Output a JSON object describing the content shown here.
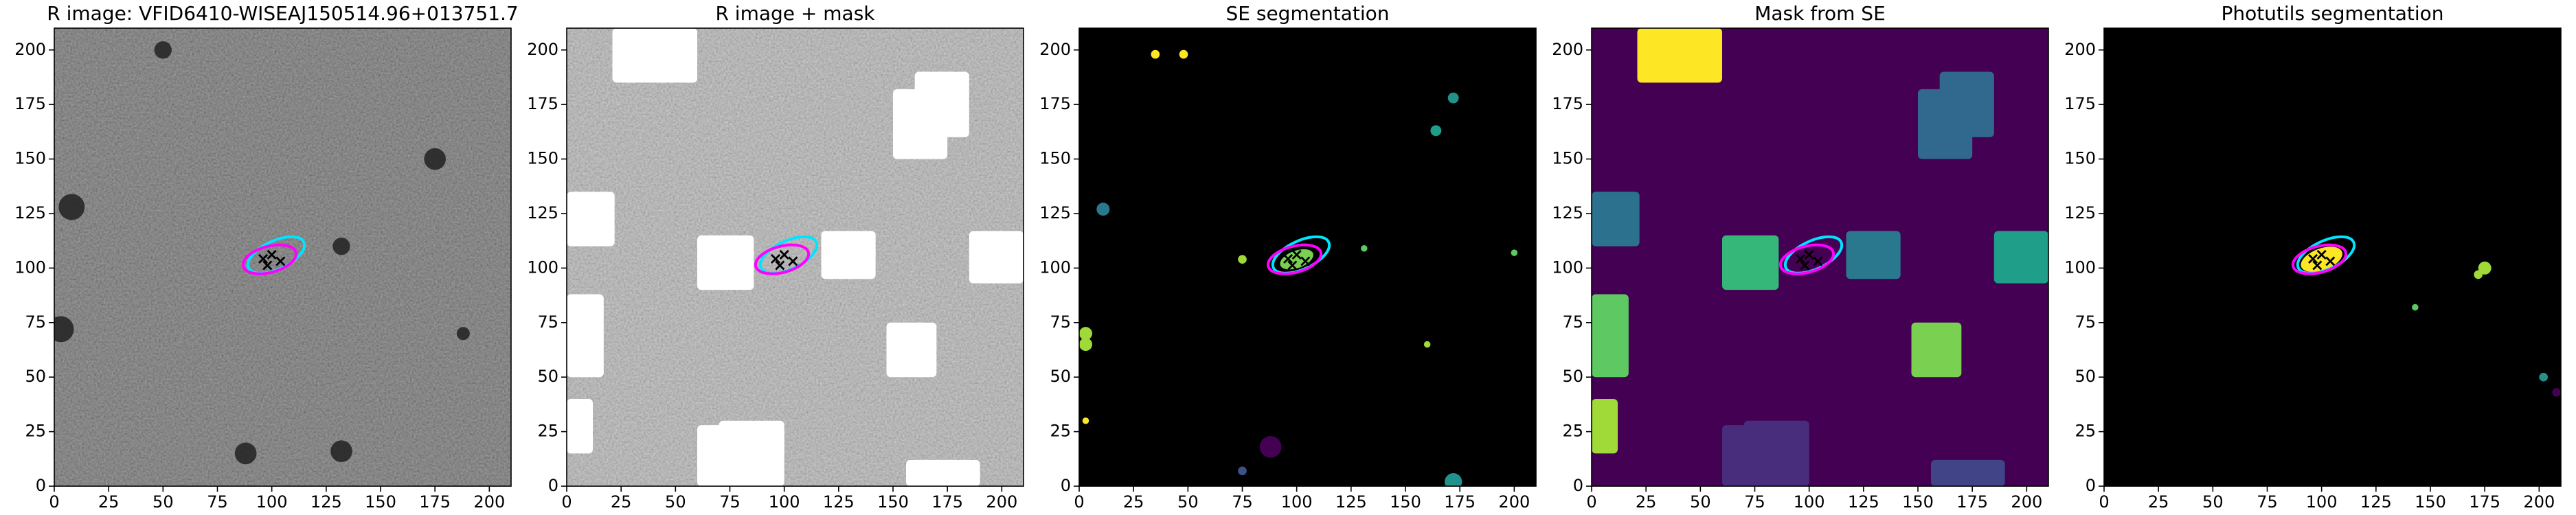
{
  "chart_data": [
    {
      "type": "image",
      "title": "R image: VFID6410-WISEAJ150514.96+013751.7",
      "background": "#5a5a5a",
      "texture": true,
      "xlim": [
        0,
        210
      ],
      "ylim": [
        0,
        210
      ],
      "xticks": [
        0,
        25,
        50,
        75,
        100,
        125,
        150,
        175,
        200
      ],
      "yticks": [
        0,
        25,
        50,
        75,
        100,
        125,
        150,
        175,
        200
      ]
    },
    {
      "type": "image",
      "title": "R image + mask",
      "background": "#b0b0b0",
      "texture": true,
      "xlim": [
        0,
        210
      ],
      "ylim": [
        0,
        210
      ],
      "xticks": [
        0,
        25,
        50,
        75,
        100,
        125,
        150,
        175,
        200
      ],
      "yticks": [
        0,
        25,
        50,
        75,
        100,
        125,
        150,
        175,
        200
      ]
    },
    {
      "type": "image",
      "title": "SE segmentation",
      "background": "#000000",
      "texture": false,
      "xlim": [
        0,
        210
      ],
      "ylim": [
        0,
        210
      ],
      "xticks": [
        0,
        25,
        50,
        75,
        100,
        125,
        150,
        175,
        200
      ],
      "yticks": [
        0,
        25,
        50,
        75,
        100,
        125,
        150,
        175,
        200
      ]
    },
    {
      "type": "image",
      "title": "Mask from SE",
      "background": "#440154",
      "texture": false,
      "xlim": [
        0,
        210
      ],
      "ylim": [
        0,
        210
      ],
      "xticks": [
        0,
        25,
        50,
        75,
        100,
        125,
        150,
        175,
        200
      ],
      "yticks": [
        0,
        25,
        50,
        75,
        100,
        125,
        150,
        175,
        200
      ]
    },
    {
      "type": "image",
      "title": "Photutils segmentation",
      "background": "#000000",
      "texture": false,
      "xlim": [
        0,
        210
      ],
      "ylim": [
        0,
        210
      ],
      "xticks": [
        0,
        25,
        50,
        75,
        100,
        125,
        150,
        175,
        200
      ],
      "yticks": [
        0,
        25,
        50,
        75,
        100,
        125,
        150,
        175,
        200
      ]
    }
  ]
}
